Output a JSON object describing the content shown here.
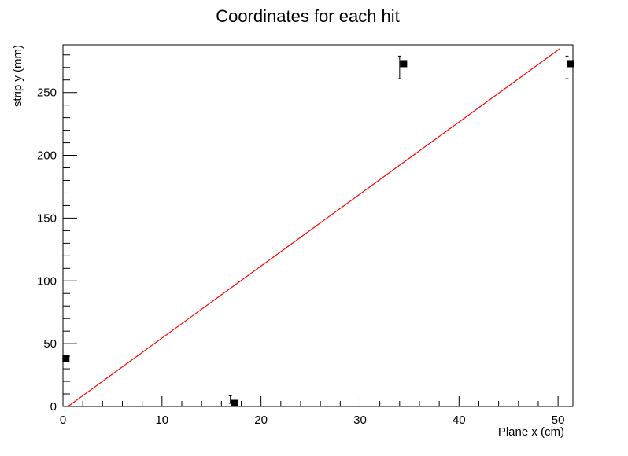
{
  "chart_data": {
    "type": "scatter",
    "title": "Coordinates for each hit",
    "xlabel": "Plane x (cm)",
    "ylabel": "strip  y (mm)",
    "xlim": [
      0,
      51.5
    ],
    "ylim": [
      0,
      288
    ],
    "x_ticks": [
      0,
      10,
      20,
      30,
      40,
      50
    ],
    "y_ticks": [
      0,
      50,
      100,
      150,
      200,
      250
    ],
    "grid": false,
    "points": [
      {
        "x": 0.3,
        "y": 38.5,
        "yerr_low": 0,
        "yerr_high": 0
      },
      {
        "x": 17.3,
        "y": 2.5,
        "yerr_low": 0,
        "yerr_high": 6
      },
      {
        "x": 34.4,
        "y": 273,
        "yerr_low": 12,
        "yerr_high": 6
      },
      {
        "x": 51.3,
        "y": 273,
        "yerr_low": 12,
        "yerr_high": 6
      }
    ],
    "fit_line": {
      "color": "#ff0000",
      "x": [
        0.5,
        50.2
      ],
      "y": [
        0,
        285
      ]
    },
    "marker_color": "#000000"
  }
}
